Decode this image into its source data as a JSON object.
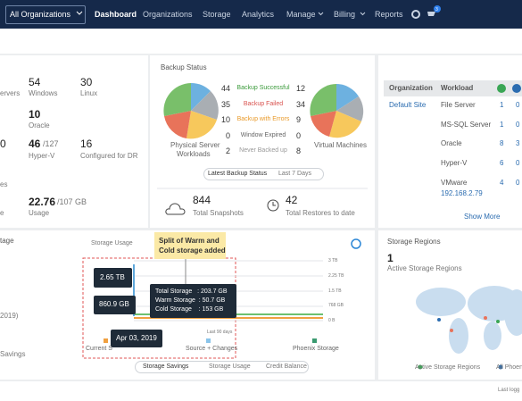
{
  "nav": {
    "org_selector": "All Organizations",
    "items": [
      "Dashboard",
      "Organizations",
      "Storage",
      "Analytics",
      "Manage",
      "Billing",
      "Reports"
    ],
    "cart_badge": "3"
  },
  "summary": {
    "servers_label": "ervers",
    "windows_count": "54",
    "windows_label": "Windows",
    "linux_count": "30",
    "linux_label": "Linux",
    "oracle_count": "10",
    "oracle_label": "Oracle",
    "left_zero": "0",
    "hyperv_count": "46",
    "hyperv_total": "/127",
    "dr_count": "16",
    "hyperv_label": "Hyper-V",
    "dr_label": "Configured for DR",
    "left_es": "es",
    "usage_value": "22.76",
    "usage_total": "/107 GB",
    "left_e": "e",
    "usage_label": "Usage"
  },
  "backup_status": {
    "title": "Backup Status",
    "rows": [
      {
        "physical": "44",
        "label": "Backup Successful",
        "virtual": "12"
      },
      {
        "physical": "35",
        "label": "Backup Failed",
        "virtual": "34"
      },
      {
        "physical": "10",
        "label": "Backup with Errors",
        "virtual": "9"
      },
      {
        "physical": "0",
        "label": "Window Expired",
        "virtual": "0"
      },
      {
        "physical": "2",
        "label": "Never Backed up",
        "virtual": "8"
      }
    ],
    "physical_caption_1": "Physical Server",
    "physical_caption_2": "Workloads",
    "virtual_caption": "Virtual Machines",
    "tabs": [
      "Latest Backup Status",
      "Last 7 Days"
    ],
    "snapshots": "844",
    "snapshots_label": "Total Snapshots",
    "restores": "42",
    "restores_label": "Total Restores to date"
  },
  "workloads": {
    "headers": [
      "Organization",
      "Workload"
    ],
    "org": "Default Site",
    "rows": [
      {
        "workload": "File Server",
        "a": "1",
        "b": "0"
      },
      {
        "workload": "MS-SQL Server",
        "a": "1",
        "b": "0"
      },
      {
        "workload": "Oracle",
        "a": "8",
        "b": "3"
      },
      {
        "workload": "Hyper-V",
        "a": "6",
        "b": "0"
      },
      {
        "workload": "VMware",
        "a": "4",
        "b": "0"
      }
    ],
    "vmware_ip": "192.168.2.79",
    "show_more": "Show More"
  },
  "storage": {
    "left_title": "tage",
    "left_date": "2019)",
    "left_savings": "Savings",
    "chart_title": "Storage Usage",
    "callout": [
      "Split of Warm and",
      "Cold storage added"
    ],
    "axis": [
      "3 TB",
      "2.25 TB",
      "1.5 TB",
      "768 GB",
      "0 B"
    ],
    "tag_1": "2.65 TB",
    "tag_2": "860.9 GB",
    "tooltip": [
      "Total Storage   : 203.7 GB",
      "Warm Storage  : 50.7 GB",
      "Cold Storage    : 153 GB"
    ],
    "date": "Apr 03, 2019",
    "period": "Last 90 days",
    "legend": [
      "Current S",
      "Source + Changes",
      "Phoenix Storage"
    ],
    "tabs": [
      "Storage Savings",
      "Storage Usage",
      "Credit Balance"
    ]
  },
  "regions": {
    "title": "Storage Regions",
    "count": "1",
    "count_label": "Active Storage Regions",
    "legend": [
      "Active Storage Regions",
      "All Phoen"
    ]
  },
  "footer": {
    "text": "Last logg"
  }
}
